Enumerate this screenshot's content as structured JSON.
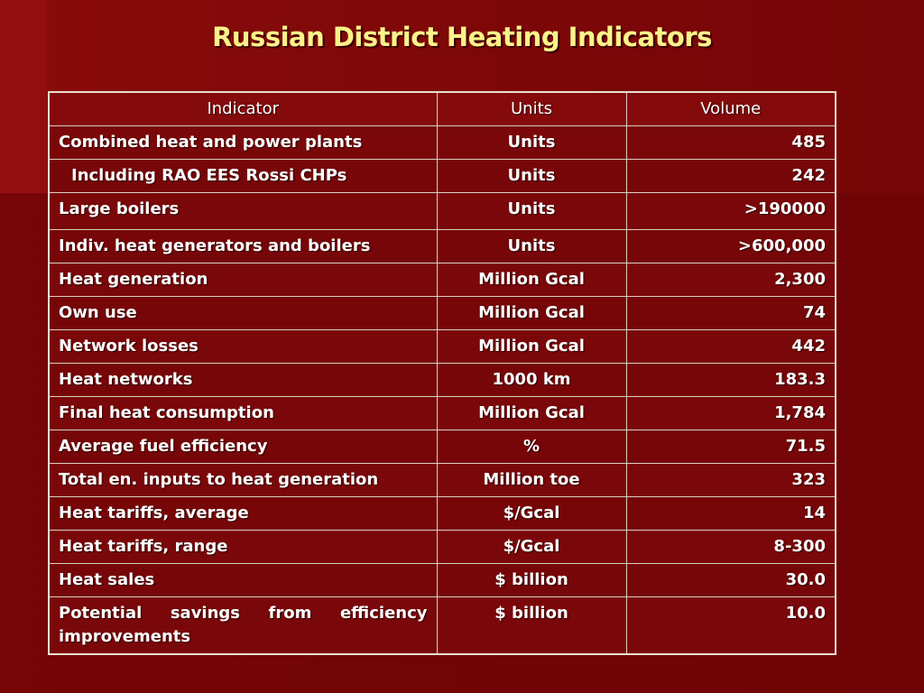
{
  "title": "Russian District Heating Indicators",
  "table": {
    "headers": [
      "Indicator",
      "Units",
      "Volume"
    ],
    "rows": [
      {
        "indicator": "Combined heat and power plants",
        "units": "Units",
        "volume": "485"
      },
      {
        "indicator": "Including RAO EES Rossi CHPs",
        "units": "Units",
        "volume": "242"
      },
      {
        "indicator": "Large boilers",
        "units": "Units",
        "volume": ">190000"
      },
      {
        "indicator": "Indiv. heat generators and boilers",
        "units": "Units",
        "volume": ">600,000"
      },
      {
        "indicator": "Heat generation",
        "units": "Million Gcal",
        "volume": "2,300"
      },
      {
        "indicator": "Own use",
        "units": "Million Gcal",
        "volume": "74"
      },
      {
        "indicator": "Network losses",
        "units": "Million Gcal",
        "volume": "442"
      },
      {
        "indicator": "Heat networks",
        "units": "1000 km",
        "volume": "183.3"
      },
      {
        "indicator": "Final heat consumption",
        "units": "Million Gcal",
        "volume": "1,784"
      },
      {
        "indicator": "Average fuel efficiency",
        "units": "%",
        "volume": "71.5"
      },
      {
        "indicator": "Total en. inputs to heat generation",
        "units": "Million toe",
        "volume": "323"
      },
      {
        "indicator": "Heat tariffs, average",
        "units": "$/Gcal",
        "volume": "14"
      },
      {
        "indicator": "Heat tariffs, range",
        "units": "$/Gcal",
        "volume": "8-300"
      },
      {
        "indicator": "Heat sales",
        "units": "$ billion",
        "volume": "30.0"
      },
      {
        "indicator": "Potential savings from efficiency improvements",
        "units": "$ billion",
        "volume": "10.0"
      }
    ]
  },
  "colors": {
    "background": "#7a0608",
    "title": "#fbf38a",
    "text": "#ffffff",
    "grid": "#d8cfc0"
  }
}
